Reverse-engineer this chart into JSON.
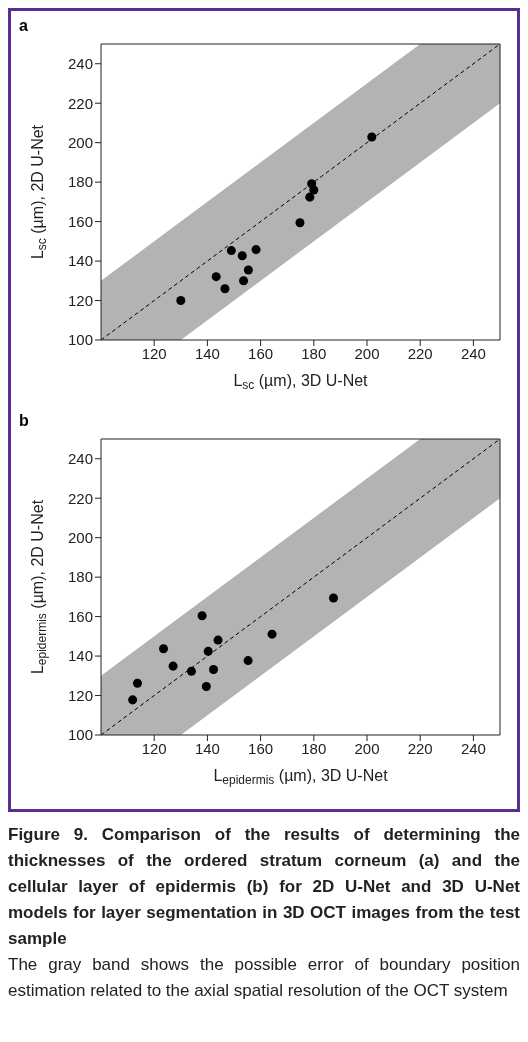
{
  "chart_data": [
    {
      "type": "scatter",
      "title": "a",
      "xlabel": "L$_{sc}$ (µm), 3D U-Net",
      "ylabel": "L$_{sc}$ (µm), 2D U-Net",
      "xlim": [
        100,
        250
      ],
      "ylim": [
        100,
        250
      ],
      "xticks": [
        120,
        140,
        160,
        180,
        200,
        220,
        240
      ],
      "yticks": [
        100,
        120,
        140,
        160,
        180,
        200,
        220,
        240
      ],
      "grid": false,
      "legend": false,
      "series": [
        {
          "type": "line",
          "color": "#000000",
          "line_style": "dashed",
          "marker": "none",
          "x": [
            100,
            130,
            220,
            250
          ],
          "values": [
            100,
            130,
            220,
            250
          ],
          "lower": [
            100,
            100,
            190,
            220
          ],
          "upper": [
            130,
            160,
            250,
            250
          ]
        },
        {
          "type": "scatter",
          "color": "#000000",
          "marker": "circle",
          "x": [
            130,
            143.3,
            146.6,
            149,
            153.1,
            153.6,
            155.4,
            158.3,
            174.8,
            178.5,
            179.2,
            180,
            201.8
          ],
          "values": [
            120,
            132.1,
            126,
            145.3,
            142.7,
            130,
            135.5,
            145.8,
            159.4,
            172.4,
            179.2,
            176,
            202.9
          ]
        }
      ]
    },
    {
      "type": "scatter",
      "title": "b",
      "xlabel": "L$_{epidermis}$ (µm), 3D U-Net",
      "ylabel": "L$_{epidermis}$ (µm), 2D U-Net",
      "xlim": [
        100,
        250
      ],
      "ylim": [
        100,
        250
      ],
      "xticks": [
        120,
        140,
        160,
        180,
        200,
        220,
        240
      ],
      "yticks": [
        100,
        120,
        140,
        160,
        180,
        200,
        220,
        240
      ],
      "grid": false,
      "legend": false,
      "annotations": [
        "Figure 9. Comparison of the results of determining the thicknesses of the ordered stratum corneum (a) and the cellular layer of epidermis (b) for 2D U-Net and 3D U-Net models for layer segmentation in 3D OCT images from the test sample",
        "The gray band shows the possible error of boundary position estimation related to the axial spatial resolution of the OCT system"
      ],
      "series": [
        {
          "type": "line",
          "color": "#000000",
          "line_style": "dashed",
          "marker": "none",
          "x": [
            100,
            130,
            220,
            250
          ],
          "values": [
            100,
            130,
            220,
            250
          ],
          "lower": [
            100,
            100,
            190,
            220
          ],
          "upper": [
            130,
            160,
            250,
            250
          ]
        },
        {
          "type": "scatter",
          "color": "#000000",
          "marker": "circle",
          "x": [
            111.9,
            113.7,
            123.5,
            127.1,
            134,
            138,
            140.3,
            139.6,
            142.3,
            144,
            155.3,
            164.3,
            187.4
          ],
          "values": [
            117.8,
            126.2,
            143.7,
            134.9,
            132.3,
            160.4,
            142.4,
            124.6,
            133.2,
            148.1,
            137.7,
            151.1,
            169.4
          ]
        }
      ]
    }
  ]
}
